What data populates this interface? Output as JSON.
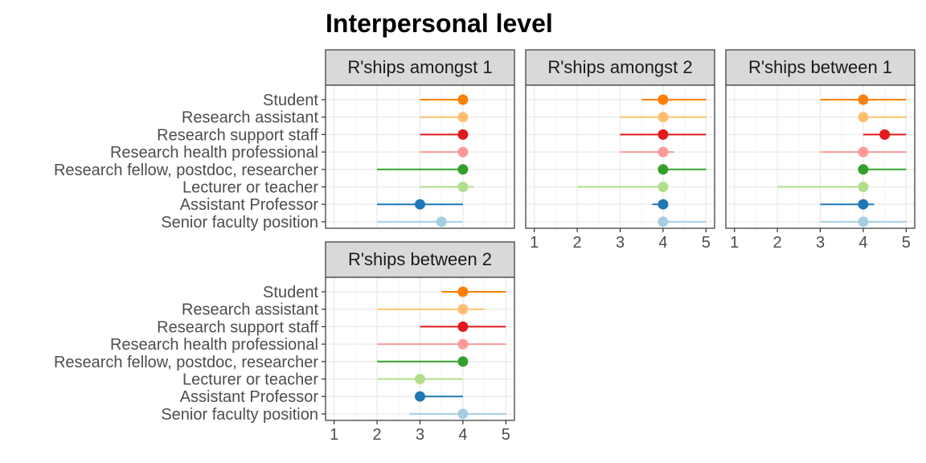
{
  "chart_data": {
    "type": "scatter",
    "title": "Interpersonal level",
    "categories": [
      "Student",
      "Research assistant",
      "Research support staff",
      "Research health professional",
      "Research fellow, postdoc, researcher",
      "Lecturer or teacher",
      "Assistant Professor",
      "Senior faculty position"
    ],
    "colors": [
      "#FF7F00",
      "#FDBF6F",
      "#E31A1C",
      "#FB9A99",
      "#33A02C",
      "#B2DF8A",
      "#1F78B4",
      "#A6CEE3"
    ],
    "x_ticks": [
      1,
      2,
      3,
      4,
      5
    ],
    "xlim": [
      0.8,
      5.2
    ],
    "grid": true,
    "facets": [
      {
        "label": "R'ships amongst 1",
        "median": [
          4,
          4,
          4,
          4,
          4,
          4,
          3,
          3.5
        ],
        "low": [
          3,
          3,
          3,
          3,
          2,
          3,
          2,
          2
        ],
        "high": [
          4,
          4,
          4,
          4,
          4,
          4.25,
          4,
          4
        ]
      },
      {
        "label": "R'ships amongst 2",
        "median": [
          4,
          4,
          4,
          4,
          4,
          4,
          4,
          4
        ],
        "low": [
          3.5,
          3,
          3,
          3,
          4,
          2,
          3.75,
          4
        ],
        "high": [
          5,
          5,
          5,
          4.25,
          5,
          4,
          4,
          5
        ]
      },
      {
        "label": "R'ships between 1",
        "median": [
          4,
          4,
          4.5,
          4,
          4,
          4,
          4,
          4
        ],
        "low": [
          3,
          4,
          4,
          3,
          4,
          2,
          3,
          3
        ],
        "high": [
          5,
          5,
          5,
          5,
          5,
          4,
          4.25,
          5
        ]
      },
      {
        "label": "R'ships between 2",
        "median": [
          4,
          4,
          4,
          4,
          4,
          3,
          3,
          4
        ],
        "low": [
          3.5,
          2,
          3,
          2,
          2,
          2,
          3,
          2.75
        ],
        "high": [
          5,
          4.5,
          5,
          5,
          4,
          4,
          4,
          5
        ]
      }
    ]
  }
}
